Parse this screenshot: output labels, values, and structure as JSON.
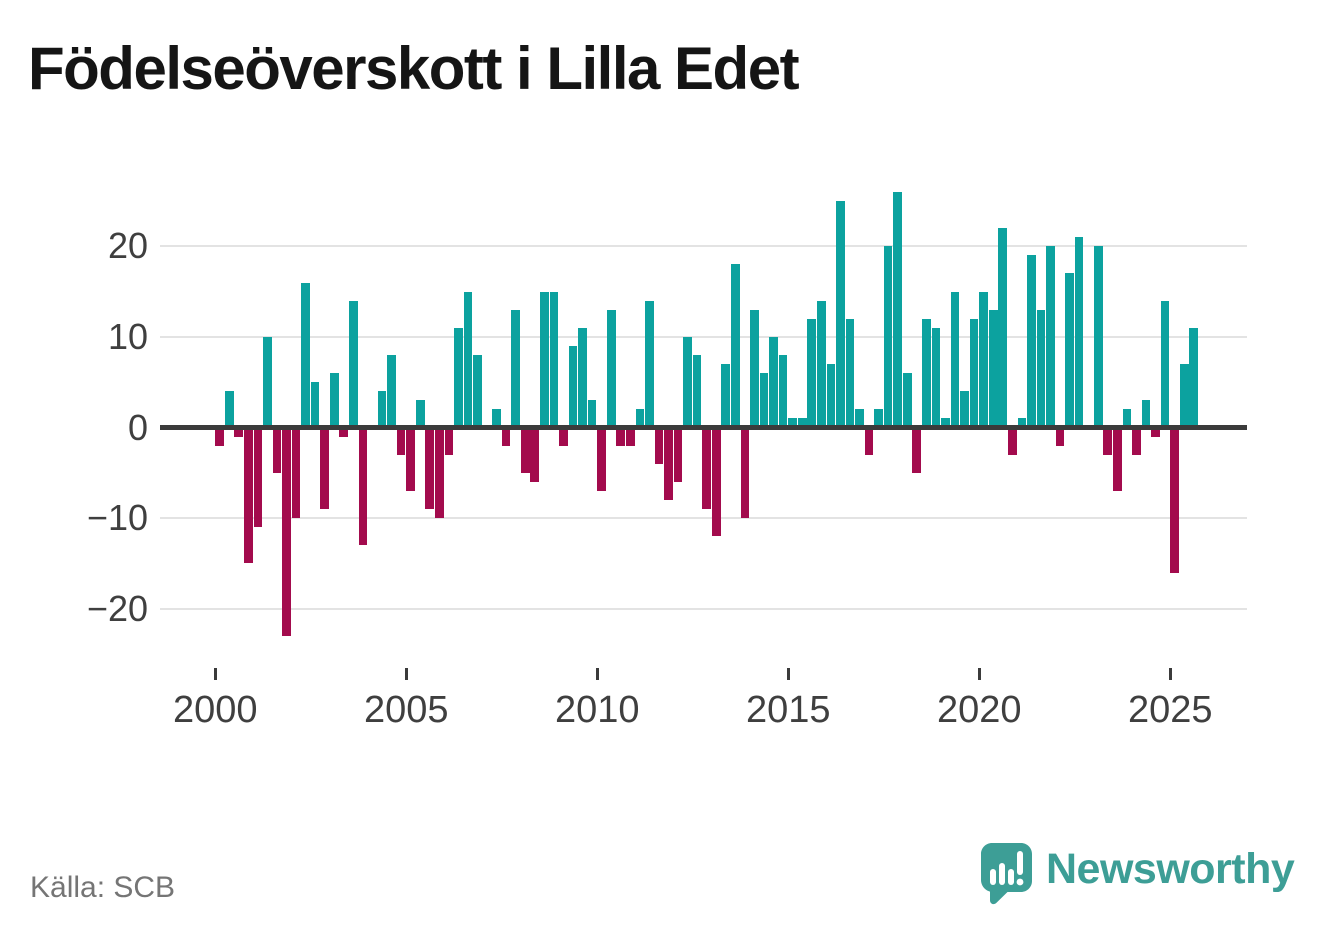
{
  "title": "Födelseöverskott i Lilla Edet",
  "source": "Källa: SCB",
  "branding": {
    "name": "Newsworthy",
    "color": "#3D9E96",
    "icon": "speech-bubble-with-bar-chart-and-exclamation"
  },
  "colors": {
    "background": "#FFFFFF",
    "positive": "#0CA29F",
    "negative": "#A30B4D",
    "axis": "#3B3B3B",
    "grid": "#E3E3E3",
    "axis_label": "#3F3F3F",
    "title": "#151515",
    "source": "#757575"
  },
  "chart_data": {
    "type": "bar",
    "title": "Födelseöverskott i Lilla Edet",
    "frequency": "quarterly",
    "first_period": "2000 Q1",
    "last_period": "2025 Q3",
    "xlabel": "",
    "ylabel": "",
    "ylim": [
      -24.5,
      27.5
    ],
    "grid": true,
    "legend": false,
    "y_ticks": [
      20,
      10,
      0,
      -10,
      -20
    ],
    "y_tick_labels": [
      "20",
      "10",
      "0",
      "−10",
      "−20"
    ],
    "x_tick_years": [
      2000,
      2005,
      2010,
      2015,
      2020,
      2025
    ],
    "x_tick_labels": [
      "2000",
      "2005",
      "2010",
      "2015",
      "2020",
      "2025"
    ],
    "series": [
      {
        "year": 2000,
        "quarters": [
          -2,
          4,
          -1,
          -15
        ]
      },
      {
        "year": 2001,
        "quarters": [
          -11,
          10,
          -5,
          -23
        ]
      },
      {
        "year": 2002,
        "quarters": [
          -10,
          16,
          5,
          -9
        ]
      },
      {
        "year": 2003,
        "quarters": [
          6,
          -1,
          14,
          -13
        ]
      },
      {
        "year": 2004,
        "quarters": [
          0,
          4,
          8,
          -3
        ]
      },
      {
        "year": 2005,
        "quarters": [
          -7,
          3,
          -9,
          -10
        ]
      },
      {
        "year": 2006,
        "quarters": [
          -3,
          11,
          15,
          8
        ]
      },
      {
        "year": 2007,
        "quarters": [
          0,
          2,
          -2,
          13
        ]
      },
      {
        "year": 2008,
        "quarters": [
          -5,
          -6,
          15,
          15
        ]
      },
      {
        "year": 2009,
        "quarters": [
          -2,
          9,
          11,
          3
        ]
      },
      {
        "year": 2010,
        "quarters": [
          -7,
          13,
          -2,
          -2
        ]
      },
      {
        "year": 2011,
        "quarters": [
          2,
          14,
          -4,
          -8
        ]
      },
      {
        "year": 2012,
        "quarters": [
          -6,
          10,
          8,
          -9
        ]
      },
      {
        "year": 2013,
        "quarters": [
          -12,
          7,
          18,
          -10
        ]
      },
      {
        "year": 2014,
        "quarters": [
          13,
          6,
          10,
          8
        ]
      },
      {
        "year": 2015,
        "quarters": [
          1,
          1,
          12,
          14
        ]
      },
      {
        "year": 2016,
        "quarters": [
          7,
          25,
          12,
          2
        ]
      },
      {
        "year": 2017,
        "quarters": [
          -3,
          2,
          20,
          26
        ]
      },
      {
        "year": 2018,
        "quarters": [
          6,
          -5,
          12,
          11
        ]
      },
      {
        "year": 2019,
        "quarters": [
          1,
          15,
          4,
          12
        ]
      },
      {
        "year": 2020,
        "quarters": [
          15,
          13,
          22,
          -3
        ]
      },
      {
        "year": 2021,
        "quarters": [
          1,
          19,
          13,
          20
        ]
      },
      {
        "year": 2022,
        "quarters": [
          -2,
          17,
          21,
          0
        ]
      },
      {
        "year": 2023,
        "quarters": [
          20,
          -3,
          -7,
          2
        ]
      },
      {
        "year": 2024,
        "quarters": [
          -3,
          3,
          -1,
          14
        ]
      },
      {
        "year": 2025,
        "quarters": [
          -16,
          7,
          11
        ]
      }
    ]
  }
}
